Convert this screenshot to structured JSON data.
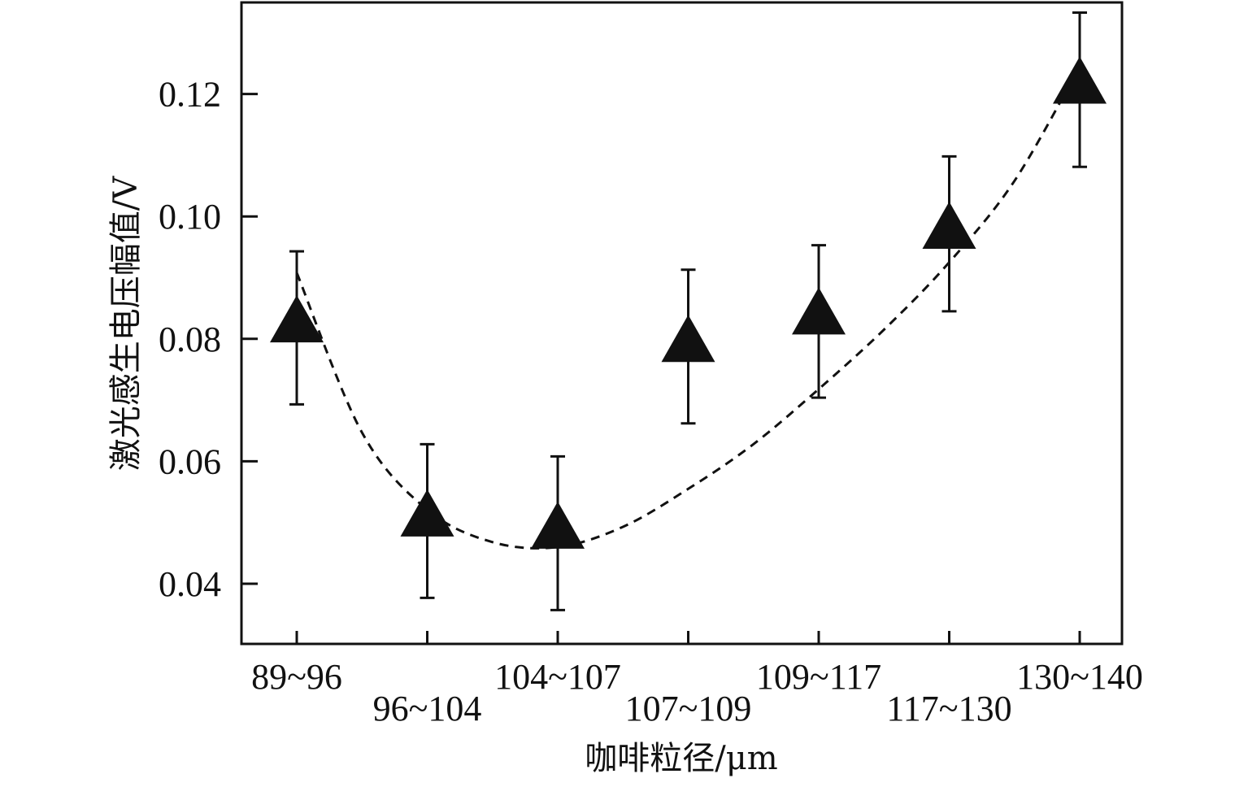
{
  "chart_data": {
    "type": "scatter",
    "xlabel": "咖啡粒径/μm",
    "ylabel": "激光感生电压幅值/V",
    "ylim": [
      0.03,
      0.135
    ],
    "y_ticks": [
      "0.04",
      "0.06",
      "0.08",
      "0.10",
      "0.12"
    ],
    "y_tick_values": [
      0.04,
      0.06,
      0.08,
      0.1,
      0.12
    ],
    "categories": [
      "89~96",
      "96~104",
      "104~107",
      "107~109",
      "109~117",
      "117~130",
      "130~140"
    ],
    "points": [
      {
        "category": "89~96",
        "y": 0.0825,
        "error_low": 0.0693,
        "error_high": 0.0943
      },
      {
        "category": "96~104",
        "y": 0.0508,
        "error_low": 0.0377,
        "error_high": 0.0628
      },
      {
        "category": "104~107",
        "y": 0.0488,
        "error_low": 0.0357,
        "error_high": 0.0608
      },
      {
        "category": "107~109",
        "y": 0.0793,
        "error_low": 0.0662,
        "error_high": 0.0913
      },
      {
        "category": "109~117",
        "y": 0.0838,
        "error_low": 0.0704,
        "error_high": 0.0953
      },
      {
        "category": "117~130",
        "y": 0.0978,
        "error_low": 0.0845,
        "error_high": 0.1098
      },
      {
        "category": "130~140",
        "y": 0.1215,
        "error_low": 0.1081,
        "error_high": 0.1333
      }
    ],
    "fit_curve": {
      "style": "dashed",
      "x_index": [
        0,
        0.5,
        1,
        1.5,
        2,
        2.5,
        3,
        3.5,
        4,
        4.5,
        5,
        5.5,
        6
      ],
      "y": [
        0.0908,
        0.0647,
        0.0521,
        0.0468,
        0.046,
        0.0493,
        0.0555,
        0.0628,
        0.0718,
        0.0815,
        0.0925,
        0.1058,
        0.1245
      ]
    },
    "marker": "triangle",
    "marker_color": "#111111",
    "grid": false,
    "legend": "none"
  }
}
